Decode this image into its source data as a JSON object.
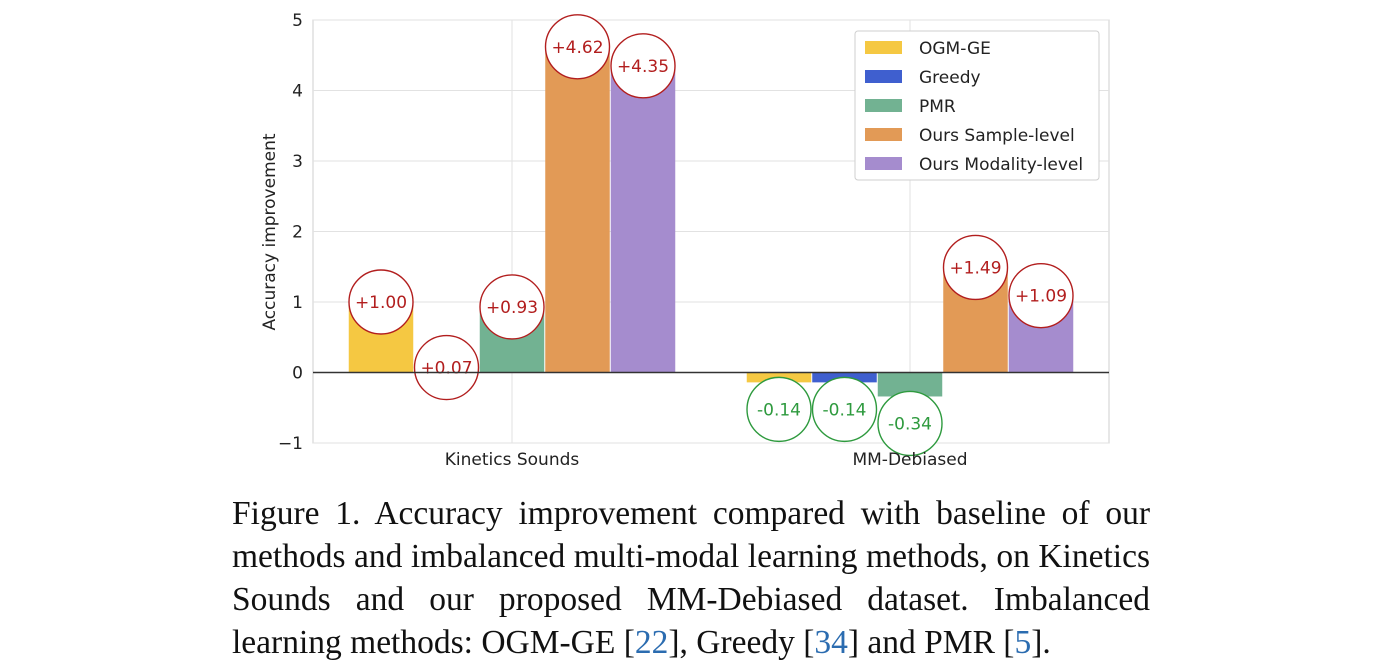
{
  "chart_data": {
    "type": "bar",
    "ylabel": "Accuracy improvement",
    "xlabel": "",
    "ylim": [
      -1,
      5
    ],
    "yticks": [
      "−1",
      "0",
      "1",
      "2",
      "3",
      "4",
      "5"
    ],
    "grid": true,
    "legend_position": "top-right",
    "categories": [
      "Kinetics Sounds",
      "MM-Debiased"
    ],
    "series": [
      {
        "name": "OGM-GE",
        "color": "#f5c842",
        "values": [
          1.0,
          -0.14
        ],
        "labels": [
          "+1.00",
          "-0.14"
        ]
      },
      {
        "name": "Greedy",
        "color": "#3f5fcf",
        "values": [
          0.07,
          -0.14
        ],
        "labels": [
          "+0.07",
          "-0.14"
        ]
      },
      {
        "name": "PMR",
        "color": "#72b292",
        "values": [
          0.93,
          -0.34
        ],
        "labels": [
          "+0.93",
          "-0.34"
        ]
      },
      {
        "name": "Ours Sample-level",
        "color": "#e29a56",
        "values": [
          4.62,
          1.49
        ],
        "labels": [
          "+4.62",
          "+1.49"
        ]
      },
      {
        "name": "Ours Modality-level",
        "color": "#a58cce",
        "values": [
          4.35,
          1.09
        ],
        "labels": [
          "+4.35",
          "+1.09"
        ]
      }
    ],
    "positive_label_color": "#b21e1e",
    "negative_label_color": "#2e9a3e"
  },
  "caption": {
    "part1": "Figure 1.  Accuracy improvement compared with baseline of our methods and imbalanced multi-modal learning methods, on Kinetics Sounds and our proposed MM-Debiased dataset.  Imbalanced learning methods: OGM-GE [",
    "ref1": "22",
    "part2": "], Greedy [",
    "ref2": "34",
    "part3": "] and PMR [",
    "ref3": "5",
    "part4": "]."
  }
}
